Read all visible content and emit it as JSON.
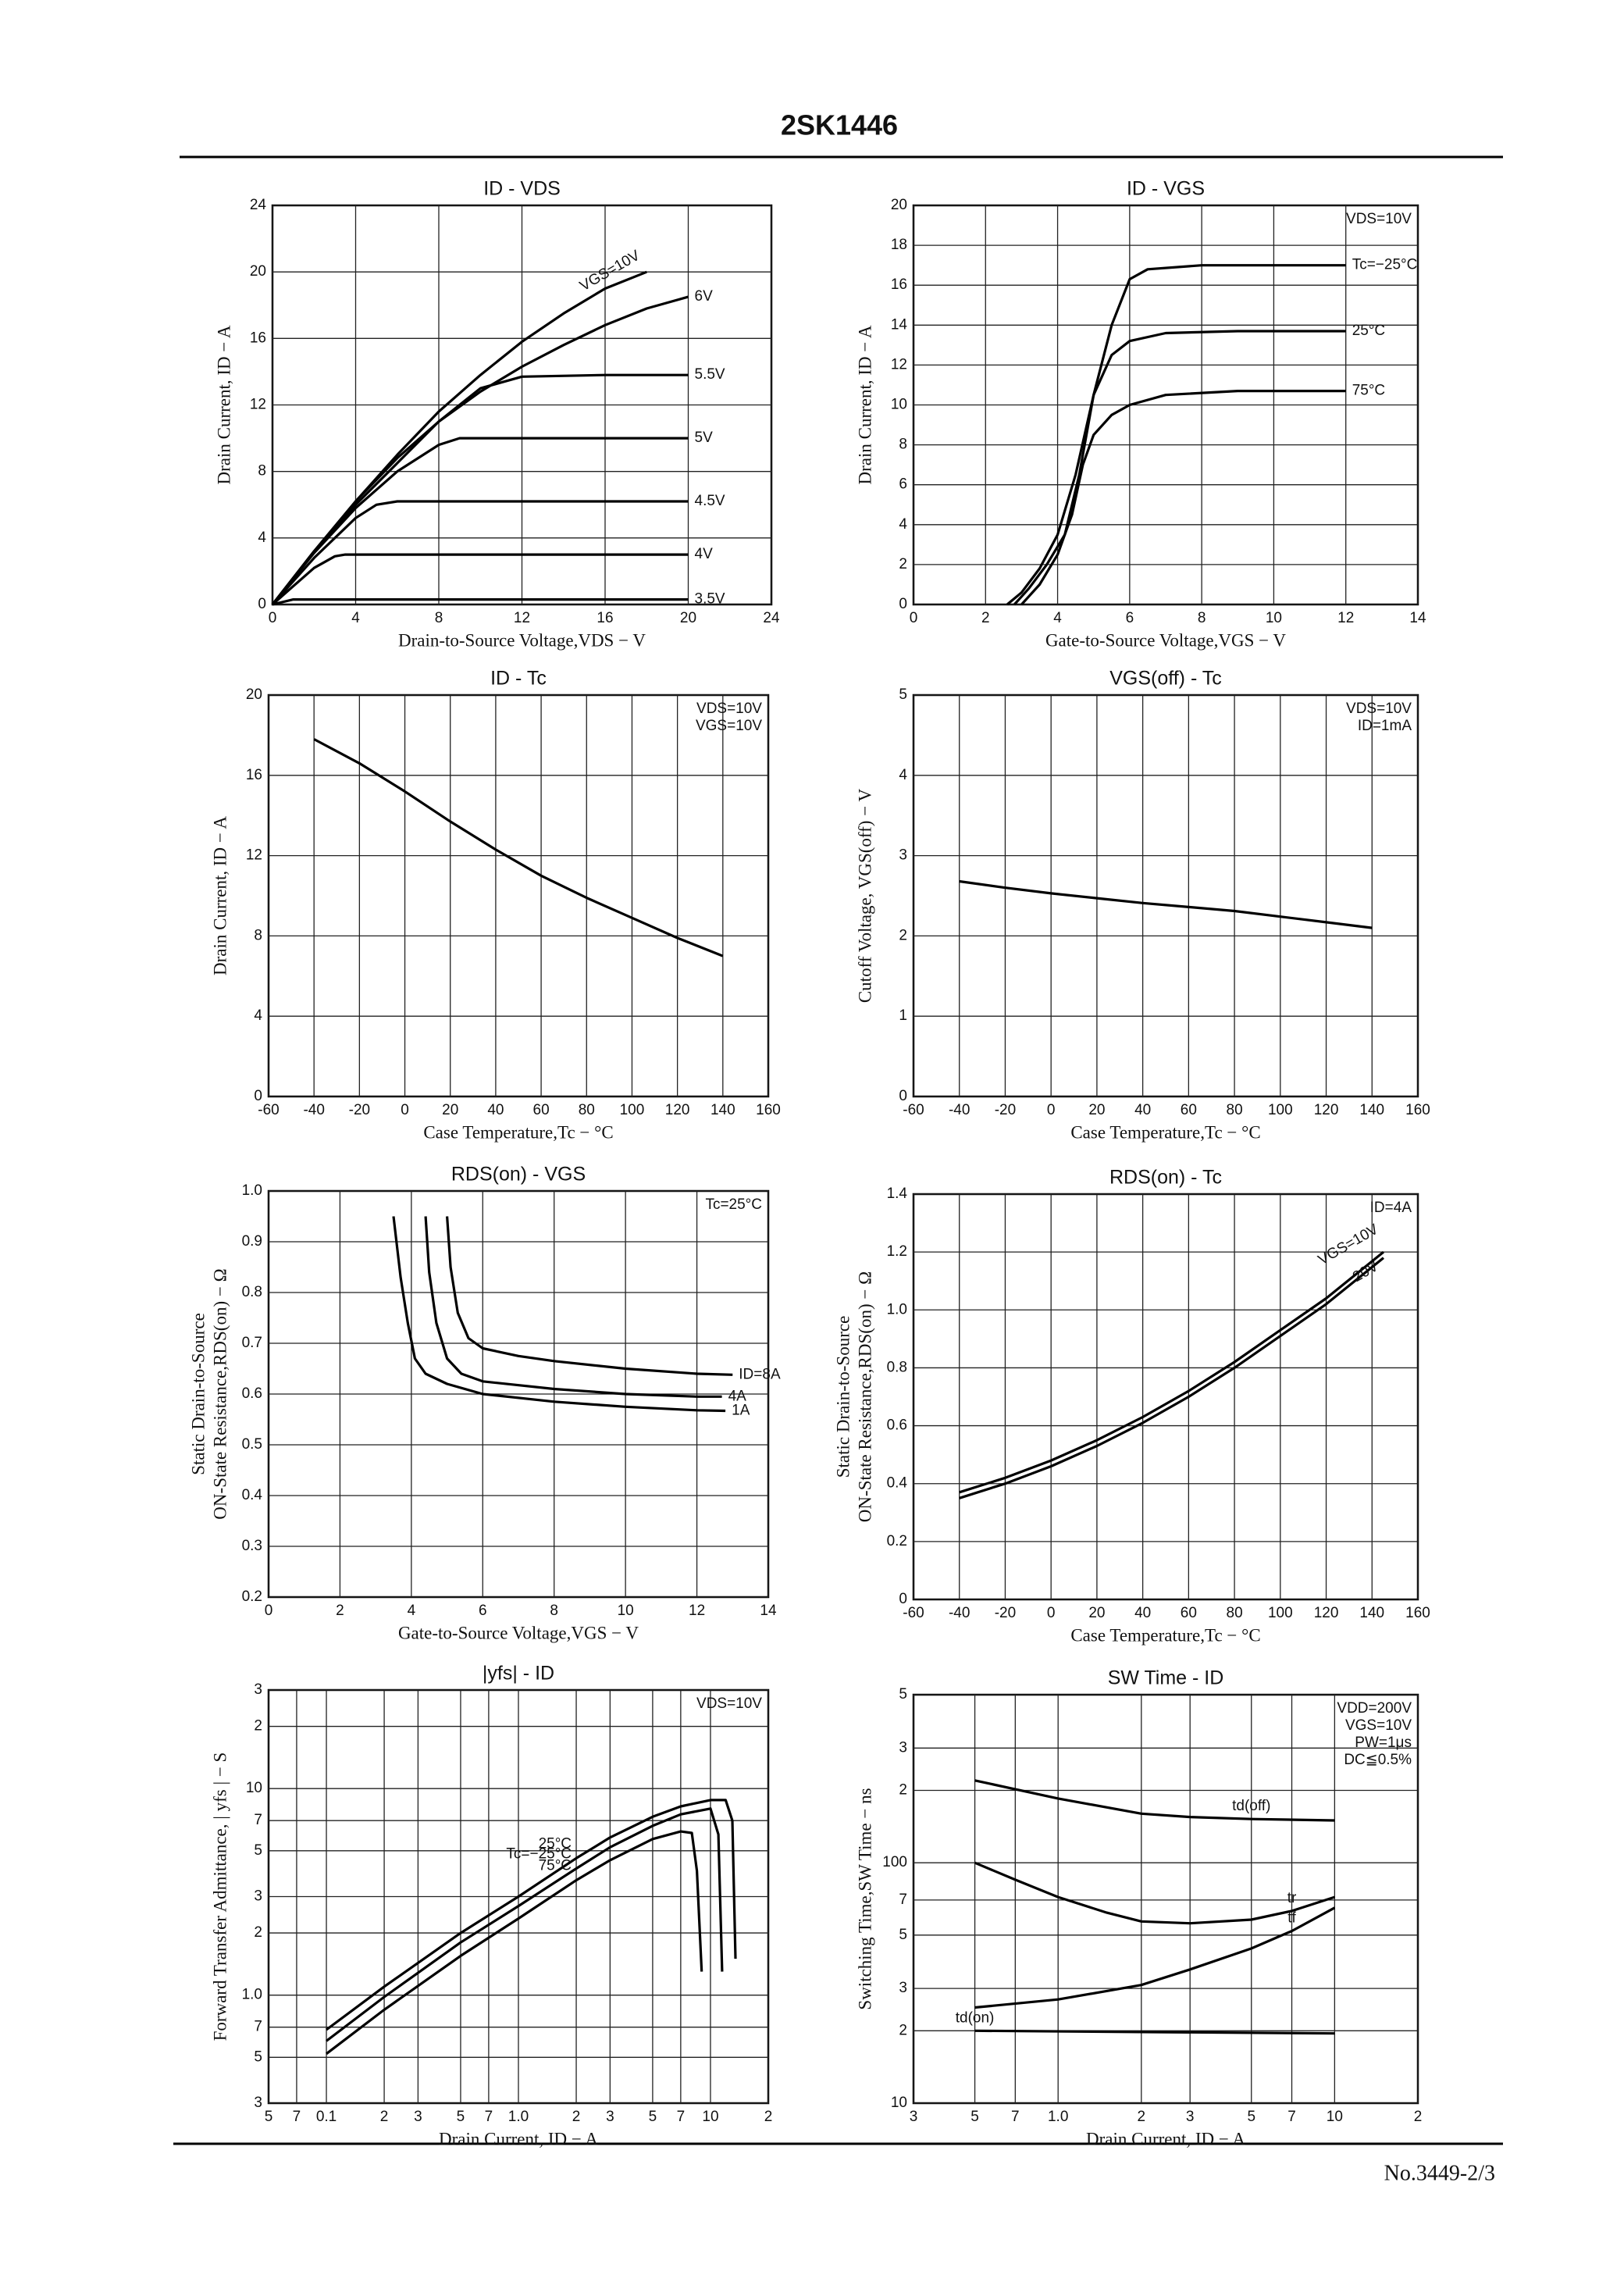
{
  "header": {
    "title": "2SK1446"
  },
  "footer": {
    "page": "No.3449-2/3"
  },
  "chart_data": [
    {
      "type": "line",
      "title": "ID - VDS",
      "xlabel": "Drain-to-Source Voltage,VDS − V",
      "ylabel": [
        "Drain Current, ID − A"
      ],
      "xlim": [
        0,
        24
      ],
      "xticks": [
        0,
        4,
        8,
        12,
        16,
        20,
        24
      ],
      "ylim": [
        0,
        24
      ],
      "yticks": [
        0,
        4,
        8,
        12,
        16,
        20,
        24
      ],
      "grid": true,
      "series": [
        {
          "name": "VGS=10V",
          "color": "#000000",
          "x": [
            0,
            2,
            4,
            6,
            8,
            10,
            12,
            14,
            16,
            18
          ],
          "values": [
            0,
            3.2,
            6.2,
            9,
            11.6,
            13.8,
            15.8,
            17.5,
            19,
            20
          ]
        },
        {
          "name": "6V",
          "color": "#000000",
          "x": [
            0,
            2,
            4,
            6,
            8,
            10,
            12,
            14,
            16,
            18,
            20
          ],
          "values": [
            0,
            3.2,
            6.2,
            8.8,
            11,
            12.8,
            14.3,
            15.6,
            16.8,
            17.8,
            18.5
          ]
        },
        {
          "name": "5.5V",
          "color": "#000000",
          "x": [
            0,
            2,
            4,
            6,
            8,
            9,
            10,
            12,
            16,
            20
          ],
          "values": [
            0,
            3.2,
            6,
            8.5,
            11,
            12,
            13,
            13.7,
            13.8,
            13.8
          ]
        },
        {
          "name": "5V",
          "color": "#000000",
          "x": [
            0,
            2,
            4,
            6,
            8,
            9,
            20
          ],
          "values": [
            0,
            3.1,
            5.8,
            8,
            9.6,
            10,
            10
          ]
        },
        {
          "name": "4.5V",
          "color": "#000000",
          "x": [
            0,
            2,
            4,
            5,
            6,
            20
          ],
          "values": [
            0,
            2.8,
            5.2,
            6,
            6.2,
            6.2
          ]
        },
        {
          "name": "4V",
          "color": "#000000",
          "x": [
            0,
            1,
            2,
            3,
            3.5,
            20
          ],
          "values": [
            0,
            1.1,
            2.2,
            2.9,
            3,
            3
          ]
        },
        {
          "name": "3.5V",
          "color": "#000000",
          "x": [
            0,
            1,
            20
          ],
          "values": [
            0,
            0.3,
            0.3
          ]
        }
      ]
    },
    {
      "type": "line",
      "title": "ID - VGS",
      "xlabel": "Gate-to-Source Voltage,VGS − V",
      "ylabel": [
        "Drain Current, ID − A"
      ],
      "xlim": [
        0,
        14
      ],
      "xticks": [
        0,
        2,
        4,
        6,
        8,
        10,
        12,
        14
      ],
      "ylim": [
        0,
        20
      ],
      "yticks": [
        0,
        2,
        4,
        6,
        8,
        10,
        12,
        14,
        16,
        18,
        20
      ],
      "grid": true,
      "notes": [
        "VDS=10V"
      ],
      "series": [
        {
          "name": "Tc=−25°C",
          "color": "#000000",
          "x": [
            2.6,
            3,
            3.5,
            4,
            4.5,
            5,
            5.5,
            6,
            6.5,
            8,
            12
          ],
          "values": [
            0,
            0.6,
            1.8,
            3.5,
            6.5,
            10.5,
            14,
            16.3,
            16.8,
            17,
            17
          ]
        },
        {
          "name": "25°C",
          "color": "#000000",
          "x": [
            2.8,
            3.2,
            3.7,
            4.2,
            4.6,
            5,
            5.5,
            6,
            7,
            9,
            12
          ],
          "values": [
            0,
            0.8,
            2,
            3.5,
            6.5,
            10.5,
            12.5,
            13.2,
            13.6,
            13.7,
            13.7
          ]
        },
        {
          "name": "75°C",
          "color": "#000000",
          "x": [
            3,
            3.5,
            4,
            4.4,
            4.7,
            5,
            5.5,
            6,
            7,
            9,
            12
          ],
          "values": [
            0,
            1,
            2.5,
            4.5,
            7,
            8.5,
            9.5,
            10,
            10.5,
            10.7,
            10.7
          ]
        }
      ]
    },
    {
      "type": "line",
      "title": "ID - Tc",
      "xlabel": "Case Temperature,Tc − °C",
      "ylabel": [
        "Drain Current, ID − A"
      ],
      "xlim": [
        -60,
        160
      ],
      "xticks": [
        -60,
        -40,
        -20,
        0,
        20,
        40,
        60,
        80,
        100,
        120,
        140,
        160
      ],
      "ylim": [
        0,
        20
      ],
      "yticks": [
        0,
        4,
        8,
        12,
        16,
        20
      ],
      "grid": true,
      "notes": [
        "VDS=10V",
        "VGS=10V"
      ],
      "series": [
        {
          "color": "#000000",
          "x": [
            -40,
            -20,
            0,
            20,
            40,
            60,
            80,
            100,
            120,
            140
          ],
          "values": [
            17.8,
            16.6,
            15.2,
            13.7,
            12.3,
            11,
            9.9,
            8.9,
            7.9,
            7
          ]
        }
      ]
    },
    {
      "type": "line",
      "title": "VGS(off) - Tc",
      "xlabel": "Case Temperature,Tc − °C",
      "ylabel": [
        "Cutoff Voltage, VGS(off) − V"
      ],
      "xlim": [
        -60,
        160
      ],
      "xticks": [
        -60,
        -40,
        -20,
        0,
        20,
        40,
        60,
        80,
        100,
        120,
        140,
        160
      ],
      "ylim": [
        0,
        5
      ],
      "yticks": [
        0,
        1,
        2,
        3,
        4,
        5
      ],
      "grid": true,
      "notes": [
        "VDS=10V",
        "ID=1mA"
      ],
      "series": [
        {
          "color": "#000000",
          "x": [
            -40,
            -20,
            0,
            20,
            40,
            60,
            80,
            100,
            120,
            140
          ],
          "values": [
            2.68,
            2.6,
            2.53,
            2.47,
            2.41,
            2.36,
            2.31,
            2.24,
            2.17,
            2.1
          ]
        }
      ]
    },
    {
      "type": "line",
      "title": "RDS(on) - VGS",
      "xlabel": "Gate-to-Source Voltage,VGS − V",
      "ylabel": [
        "Static Drain-to-Source",
        "ON-State Resistance,RDS(on) − Ω"
      ],
      "xlim": [
        0,
        14
      ],
      "xticks": [
        0,
        2,
        4,
        6,
        8,
        10,
        12,
        14
      ],
      "ylim": [
        0.2,
        1
      ],
      "yticks": [
        0.2,
        0.3,
        0.4,
        0.5,
        0.6,
        0.7,
        0.8,
        0.9,
        {
          "value": 1,
          "label": "1.0"
        }
      ],
      "grid": true,
      "notes": [
        "Tc=25°C"
      ],
      "series": [
        {
          "name": "ID=8A",
          "color": "#000000",
          "x": [
            5,
            5.1,
            5.3,
            5.6,
            6,
            7,
            8,
            10,
            12,
            13
          ],
          "values": [
            0.95,
            0.85,
            0.76,
            0.71,
            0.69,
            0.675,
            0.665,
            0.65,
            0.64,
            0.638
          ]
        },
        {
          "name": "4A",
          "color": "#000000",
          "x": [
            4.4,
            4.5,
            4.7,
            5,
            5.4,
            6,
            8,
            10,
            12,
            12.7
          ],
          "values": [
            0.95,
            0.84,
            0.74,
            0.67,
            0.64,
            0.625,
            0.61,
            0.6,
            0.595,
            0.595
          ]
        },
        {
          "name": "1A",
          "color": "#000000",
          "x": [
            3.5,
            3.7,
            3.9,
            4.1,
            4.4,
            5,
            6,
            8,
            10,
            12,
            12.8
          ],
          "values": [
            0.95,
            0.83,
            0.74,
            0.67,
            0.64,
            0.62,
            0.6,
            0.585,
            0.575,
            0.568,
            0.567
          ]
        }
      ]
    },
    {
      "type": "line",
      "title": "RDS(on) - Tc",
      "xlabel": "Case Temperature,Tc − °C",
      "ylabel": [
        "Static Drain-to-Source",
        "ON-State Resistance,RDS(on) − Ω"
      ],
      "xlim": [
        -60,
        160
      ],
      "xticks": [
        -60,
        -40,
        -20,
        0,
        20,
        40,
        60,
        80,
        100,
        120,
        140,
        160
      ],
      "ylim": [
        0,
        1.4
      ],
      "yticks": [
        0,
        0.2,
        0.4,
        0.6,
        0.8,
        {
          "value": 1,
          "label": "1.0"
        },
        1.2,
        1.4
      ],
      "grid": true,
      "notes": [
        "ID=4A"
      ],
      "series": [
        {
          "name": "VGS=10V",
          "color": "#000000",
          "x": [
            -40,
            -20,
            0,
            20,
            40,
            60,
            80,
            100,
            120,
            145
          ],
          "values": [
            0.37,
            0.42,
            0.48,
            0.55,
            0.63,
            0.72,
            0.82,
            0.93,
            1.04,
            1.2
          ]
        },
        {
          "name": "20V",
          "color": "#000000",
          "x": [
            -40,
            -20,
            0,
            20,
            40,
            60,
            80,
            100,
            120,
            145
          ],
          "values": [
            0.35,
            0.4,
            0.46,
            0.53,
            0.61,
            0.7,
            0.8,
            0.91,
            1.02,
            1.18
          ]
        }
      ]
    },
    {
      "type": "line",
      "title": "|yfs| - ID",
      "xlabel": "Drain Current, ID − A",
      "ylabel": [
        "Forward Transfer Admittance, | yfs | − S"
      ],
      "xscale": "log",
      "yscale": "log",
      "xlim": [
        0.05,
        20
      ],
      "xticks": [
        {
          "value": 0.05,
          "label": "5"
        },
        {
          "value": 0.07,
          "label": "7"
        },
        0.1,
        {
          "value": 0.2,
          "label": "2"
        },
        {
          "value": 0.3,
          "label": "3"
        },
        {
          "value": 0.5,
          "label": "5"
        },
        {
          "value": 0.7,
          "label": "7"
        },
        {
          "value": 1,
          "label": "1.0"
        },
        2,
        3,
        5,
        7,
        10,
        {
          "value": 20,
          "label": "2"
        }
      ],
      "ylim": [
        0.3,
        30
      ],
      "yticks": [
        {
          "value": 0.3,
          "label": "3"
        },
        {
          "value": 0.5,
          "label": "5"
        },
        {
          "value": 0.7,
          "label": "7"
        },
        {
          "value": 1,
          "label": "1.0"
        },
        2,
        3,
        5,
        7,
        10,
        {
          "value": 20,
          "label": "2"
        },
        {
          "value": 30,
          "label": "3"
        }
      ],
      "grid": true,
      "notes": [
        "VDS=10V"
      ],
      "series": [
        {
          "name": "25°C",
          "color": "#000000",
          "x": [
            0.1,
            0.2,
            0.5,
            1,
            2,
            3,
            5,
            7,
            10,
            12,
            13,
            13.5
          ],
          "values": [
            0.68,
            1.1,
            2,
            3,
            4.6,
            5.8,
            7.3,
            8.2,
            8.8,
            8.8,
            7,
            1.5
          ]
        },
        {
          "name": "Tc=−25°C",
          "color": "#000000",
          "x": [
            0.1,
            0.2,
            0.5,
            1,
            2,
            3,
            5,
            7,
            10,
            11,
            11.5
          ],
          "values": [
            0.6,
            0.98,
            1.8,
            2.7,
            4.1,
            5.2,
            6.6,
            7.5,
            8,
            6,
            1.3
          ]
        },
        {
          "name": "75°C",
          "color": "#000000",
          "x": [
            0.1,
            0.2,
            0.5,
            1,
            2,
            3,
            5,
            7,
            8,
            8.5,
            9
          ],
          "values": [
            0.52,
            0.85,
            1.55,
            2.35,
            3.6,
            4.5,
            5.7,
            6.2,
            6.1,
            4,
            1.3
          ]
        }
      ]
    },
    {
      "type": "line",
      "title": "SW Time - ID",
      "xlabel": "Drain Current, ID − A",
      "ylabel": [
        "Switching Time,SW Time − ns"
      ],
      "xscale": "log",
      "yscale": "log",
      "xlim": [
        0.3,
        20
      ],
      "xticks": [
        {
          "value": 0.3,
          "label": "3"
        },
        {
          "value": 0.5,
          "label": "5"
        },
        {
          "value": 0.7,
          "label": "7"
        },
        {
          "value": 1,
          "label": "1.0"
        },
        2,
        3,
        5,
        7,
        10,
        {
          "value": 20,
          "label": "2"
        }
      ],
      "ylim": [
        10,
        500
      ],
      "yticks": [
        10,
        {
          "value": 20,
          "label": "2"
        },
        {
          "value": 30,
          "label": "3"
        },
        {
          "value": 50,
          "label": "5"
        },
        {
          "value": 70,
          "label": "7"
        },
        100,
        {
          "value": 200,
          "label": "2"
        },
        {
          "value": 300,
          "label": "3"
        },
        {
          "value": 500,
          "label": "5"
        }
      ],
      "grid": true,
      "notes": [
        "VDD=200V",
        "VGS=10V",
        "PW=1μs",
        "DC≦0.5%"
      ],
      "series": [
        {
          "name": "td(off)",
          "color": "#000000",
          "x": [
            0.5,
            1,
            2,
            3,
            5,
            10
          ],
          "values": [
            220,
            185,
            160,
            155,
            152,
            150
          ]
        },
        {
          "name": "tr",
          "color": "#000000",
          "x": [
            0.5,
            0.7,
            1,
            1.5,
            2,
            3,
            5,
            7,
            10
          ],
          "values": [
            100,
            85,
            72,
            62,
            57,
            56,
            58,
            63,
            72
          ]
        },
        {
          "name": "tf",
          "color": "#000000",
          "x": [
            0.5,
            1,
            2,
            3,
            5,
            7,
            10
          ],
          "values": [
            25,
            27,
            31,
            36,
            44,
            52,
            65
          ]
        },
        {
          "name": "td(on)",
          "color": "#000000",
          "x": [
            0.5,
            10
          ],
          "values": [
            20,
            19.5
          ]
        }
      ]
    }
  ]
}
